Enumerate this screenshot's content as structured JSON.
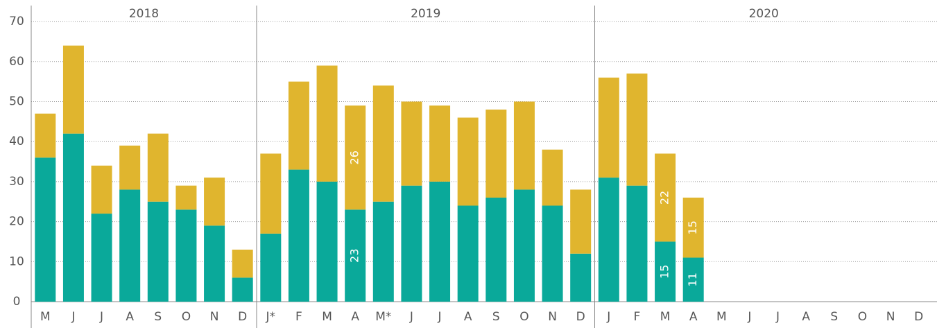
{
  "chart_data": {
    "type": "stacked_bar",
    "ylim": [
      0,
      74
    ],
    "yticks": [
      0,
      10,
      20,
      30,
      40,
      50,
      60,
      70
    ],
    "grid": true,
    "colors": [
      "#0aa99a",
      "#e0b52e"
    ],
    "panels": [
      {
        "title": "2018",
        "categories": [
          "M",
          "J",
          "J",
          "A",
          "S",
          "O",
          "N",
          "D"
        ],
        "series": [
          {
            "color": "#0aa99a",
            "values": [
              36,
              42,
              22,
              28,
              25,
              23,
              19,
              6
            ]
          },
          {
            "color": "#e0b52e",
            "values": [
              11,
              22,
              12,
              11,
              17,
              6,
              12,
              7
            ]
          }
        ]
      },
      {
        "title": "2019",
        "categories": [
          "J*",
          "F",
          "M",
          "A",
          "M*",
          "J",
          "J",
          "A",
          "S",
          "O",
          "N",
          "D"
        ],
        "series": [
          {
            "color": "#0aa99a",
            "values": [
              17,
              33,
              30,
              23,
              25,
              29,
              30,
              24,
              26,
              28,
              24,
              12
            ],
            "value_labels": [
              null,
              null,
              null,
              "23",
              null,
              null,
              null,
              null,
              null,
              null,
              null,
              null
            ]
          },
          {
            "color": "#e0b52e",
            "values": [
              20,
              22,
              29,
              26,
              29,
              21,
              19,
              22,
              22,
              22,
              14,
              16
            ],
            "value_labels": [
              null,
              null,
              null,
              "26",
              null,
              null,
              null,
              null,
              null,
              null,
              null,
              null
            ]
          }
        ]
      },
      {
        "title": "2020",
        "categories": [
          "J",
          "F",
          "M",
          "A",
          "M",
          "J",
          "J",
          "A",
          "S",
          "O",
          "N",
          "D"
        ],
        "series": [
          {
            "color": "#0aa99a",
            "values": [
              31,
              29,
              15,
              11,
              null,
              null,
              null,
              null,
              null,
              null,
              null,
              null
            ],
            "value_labels": [
              null,
              null,
              "15",
              "11",
              null,
              null,
              null,
              null,
              null,
              null,
              null,
              null
            ]
          },
          {
            "color": "#e0b52e",
            "values": [
              25,
              28,
              22,
              15,
              null,
              null,
              null,
              null,
              null,
              null,
              null,
              null
            ],
            "value_labels": [
              null,
              null,
              "22",
              "15",
              null,
              null,
              null,
              null,
              null,
              null,
              null,
              null
            ]
          }
        ]
      }
    ]
  }
}
